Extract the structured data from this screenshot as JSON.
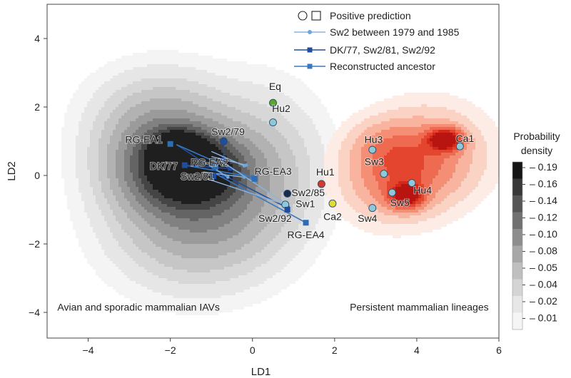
{
  "chart_data": {
    "type": "scatter",
    "title": "",
    "xlabel": "LD1",
    "ylabel": "LD2",
    "xlim": [
      -5,
      6
    ],
    "ylim": [
      -4.75,
      5
    ],
    "xticks": [
      {
        "v": -4,
        "label": "−4"
      },
      {
        "v": -2,
        "label": "−2"
      },
      {
        "v": 0,
        "label": "0"
      },
      {
        "v": 2,
        "label": "2"
      },
      {
        "v": 4,
        "label": "4"
      },
      {
        "v": 6,
        "label": "6"
      }
    ],
    "yticks": [
      {
        "v": -4,
        "label": "−4"
      },
      {
        "v": -2,
        "label": "−2"
      },
      {
        "v": 0,
        "label": "0"
      },
      {
        "v": 2,
        "label": "2"
      },
      {
        "v": 4,
        "label": "4"
      }
    ],
    "region_labels": [
      {
        "text": "Avian and sporadic mammalian IAVs",
        "x": -4.75,
        "y": -3.95,
        "anchor": "start"
      },
      {
        "text": "Persistent mammalian lineages",
        "x": 5.75,
        "y": -3.95,
        "anchor": "end"
      }
    ],
    "density": {
      "gray_peaks": [
        {
          "x": -1.85,
          "y": 0.75,
          "sx": 0.35,
          "sy": 0.3,
          "w": 1.0
        },
        {
          "x": -1.4,
          "y": 0.2,
          "sx": 0.7,
          "sy": 0.6,
          "w": 0.8
        },
        {
          "x": -2.2,
          "y": 0.3,
          "sx": 0.9,
          "sy": 0.95,
          "w": 0.55
        },
        {
          "x": -1.0,
          "y": -0.4,
          "sx": 1.1,
          "sy": 1.3,
          "w": 0.35
        },
        {
          "x": -1.6,
          "y": -1.6,
          "sx": 1.2,
          "sy": 1.1,
          "w": 0.18
        },
        {
          "x": -2.3,
          "y": 1.7,
          "sx": 1.0,
          "sy": 0.9,
          "w": 0.18
        },
        {
          "x": 0.3,
          "y": 0.2,
          "sx": 0.9,
          "sy": 1.4,
          "w": 0.15
        }
      ],
      "red_peaks": [
        {
          "x": 4.7,
          "y": 1.05,
          "sx": 0.28,
          "sy": 0.22,
          "w": 1.0
        },
        {
          "x": 3.75,
          "y": -0.6,
          "sx": 0.28,
          "sy": 0.25,
          "w": 0.85
        },
        {
          "x": 3.4,
          "y": -0.1,
          "sx": 0.8,
          "sy": 0.8,
          "w": 0.4
        },
        {
          "x": 4.3,
          "y": 0.6,
          "sx": 0.9,
          "sy": 0.9,
          "w": 0.4
        },
        {
          "x": 3.2,
          "y": 0.9,
          "sx": 0.6,
          "sy": 0.5,
          "w": 0.18
        }
      ],
      "gray_levels": [
        0.02,
        0.05,
        0.1,
        0.16,
        0.24,
        0.34,
        0.45,
        0.57,
        0.7,
        0.85
      ],
      "gray_colors": [
        "#f4f4f4",
        "#e6e6e6",
        "#d7d7d7",
        "#c6c6c6",
        "#b2b2b2",
        "#9b9b9b",
        "#818181",
        "#646464",
        "#454545",
        "#1f1f1f"
      ],
      "red_levels": [
        0.05,
        0.12,
        0.22,
        0.34,
        0.48,
        0.62,
        0.78,
        0.9
      ],
      "red_colors": [
        "#fdece6",
        "#fbd3c4",
        "#f8b49e",
        "#f48f75",
        "#ee6a50",
        "#e4452e",
        "#d2291b",
        "#b81410"
      ]
    },
    "trajectories": [
      {
        "x1": -1.85,
        "y1": 0.9,
        "x2": -0.7,
        "y2": 0.0,
        "kind": "dark"
      },
      {
        "x1": -1.85,
        "y1": 0.9,
        "x2": 0.05,
        "y2": -0.1,
        "kind": "ancestor"
      },
      {
        "x1": -1.65,
        "y1": 0.3,
        "x2": 0.0,
        "y2": -0.05,
        "kind": "ancestor"
      },
      {
        "x1": -1.65,
        "y1": 0.3,
        "x2": -0.55,
        "y2": 0.2,
        "kind": "dark"
      },
      {
        "x1": -1.0,
        "y1": 0.2,
        "x2": 0.85,
        "y2": -0.95,
        "kind": "dark"
      },
      {
        "x1": -0.9,
        "y1": 0.05,
        "x2": 1.3,
        "y2": -1.38,
        "kind": "ancestor"
      },
      {
        "x1": -0.7,
        "y1": 0.95,
        "x2": -0.7,
        "y2": 0.5,
        "kind": "dark"
      },
      {
        "x1": -1.0,
        "y1": 0.7,
        "x2": -0.2,
        "y2": 0.28,
        "kind": "light"
      },
      {
        "x1": -1.0,
        "y1": 0.55,
        "x2": -0.15,
        "y2": 0.3,
        "kind": "light"
      },
      {
        "x1": -0.8,
        "y1": 0.45,
        "x2": 0.85,
        "y2": -0.85,
        "kind": "light"
      },
      {
        "x1": -1.1,
        "y1": -0.1,
        "x2": 0.8,
        "y2": -0.85,
        "kind": "light"
      },
      {
        "x1": -1.05,
        "y1": 0.3,
        "x2": -0.6,
        "y2": -0.05,
        "kind": "light"
      },
      {
        "x1": -1.2,
        "y1": 0.1,
        "x2": -0.2,
        "y2": -0.05,
        "kind": "light"
      }
    ],
    "points": [
      {
        "label": "Eq",
        "x": 0.5,
        "y": 2.12,
        "color": "#5aa632",
        "lx": 0.55,
        "ly": 2.5,
        "anchor": "middle"
      },
      {
        "label": "Hu2",
        "x": 0.5,
        "y": 1.55,
        "color": "#8fc9d9",
        "lx": 0.7,
        "ly": 1.85,
        "anchor": "middle"
      },
      {
        "label": "Sw2/79",
        "x": -0.7,
        "y": 1.0,
        "color": "#1f4e9e",
        "lx": -1.0,
        "ly": 1.18,
        "anchor": "start"
      },
      {
        "label": "RG-EA1",
        "x": -2.0,
        "y": 0.92,
        "color": "#2d6db5",
        "lx": -3.1,
        "ly": 0.95,
        "anchor": "start",
        "shape": "square"
      },
      {
        "label": "DK/77",
        "x": -1.65,
        "y": 0.3,
        "color": "#1f4e9e",
        "lx": -2.5,
        "ly": 0.18,
        "anchor": "start",
        "shape": "square"
      },
      {
        "label": "RG-EA2",
        "x": -0.9,
        "y": 0.25,
        "color": "#2d6db5",
        "lx": -1.5,
        "ly": 0.28,
        "anchor": "start",
        "shape": "square"
      },
      {
        "label": "Sw2/81",
        "x": -0.95,
        "y": -0.02,
        "color": "#1f4e9e",
        "lx": -1.75,
        "ly": -0.13,
        "anchor": "start",
        "shape": "square"
      },
      {
        "label": "RG-EA3",
        "x": 0.05,
        "y": -0.1,
        "color": "#2d6db5",
        "lx": 0.05,
        "ly": 0.02,
        "anchor": "start",
        "shape": "square"
      },
      {
        "label": "Hu1",
        "x": 1.68,
        "y": -0.25,
        "color": "#d6392b",
        "lx": 1.55,
        "ly": 0.0,
        "anchor": "start"
      },
      {
        "label": "Sw2/85",
        "x": 0.85,
        "y": -0.53,
        "color": "#1a2a4d",
        "lx": 0.95,
        "ly": -0.6,
        "anchor": "start"
      },
      {
        "label": "Sw1",
        "x": 0.8,
        "y": -0.85,
        "color": "#8fc9d9",
        "lx": 1.05,
        "ly": -0.93,
        "anchor": "start"
      },
      {
        "label": "Ca2",
        "x": 1.95,
        "y": -0.82,
        "color": "#e6d930",
        "lx": 1.95,
        "ly": -1.3,
        "anchor": "middle"
      },
      {
        "label": "Sw2/92",
        "x": 0.85,
        "y": -1.0,
        "color": "#1f4e9e",
        "lx": 0.55,
        "ly": -1.35,
        "anchor": "middle",
        "shape": "square"
      },
      {
        "label": "RG-EA4",
        "x": 1.3,
        "y": -1.38,
        "color": "#2d6db5",
        "lx": 1.3,
        "ly": -1.83,
        "anchor": "middle",
        "shape": "square"
      },
      {
        "label": "Hu3",
        "x": 2.92,
        "y": 0.75,
        "color": "#8fc9d9",
        "lx": 2.95,
        "ly": 0.95,
        "anchor": "middle"
      },
      {
        "label": "Ca1",
        "x": 5.05,
        "y": 0.85,
        "color": "#8fc9d9",
        "lx": 4.95,
        "ly": 0.98,
        "anchor": "start"
      },
      {
        "label": "Sw3",
        "x": 3.2,
        "y": 0.05,
        "color": "#8fc9d9",
        "lx": 3.2,
        "ly": 0.3,
        "anchor": "end"
      },
      {
        "label": "Hu4",
        "x": 3.88,
        "y": -0.22,
        "color": "#8fc9d9",
        "lx": 3.92,
        "ly": -0.53,
        "anchor": "start"
      },
      {
        "label": "Sw5",
        "x": 3.4,
        "y": -0.5,
        "color": "#8fc9d9",
        "lx": 3.35,
        "ly": -0.9,
        "anchor": "start"
      },
      {
        "label": "Sw4",
        "x": 2.92,
        "y": -0.95,
        "color": "#8fc9d9",
        "lx": 2.8,
        "ly": -1.35,
        "anchor": "middle"
      }
    ],
    "legend": {
      "position": "top-right",
      "entries": [
        {
          "label": "Positive prediction",
          "kind": "shapes"
        },
        {
          "label": "Sw2 between 1979 and 1985",
          "kind": "light"
        },
        {
          "label": "DK/77, Sw2/81, Sw2/92",
          "kind": "dark"
        },
        {
          "label": "Reconstructed ancestor",
          "kind": "ancestor"
        }
      ]
    },
    "colorbar": {
      "title_lines": [
        "Probability",
        "density"
      ],
      "levels": [
        "0.19",
        "0.16",
        "0.14",
        "0.12",
        "0.10",
        "0.08",
        "0.05",
        "0.04",
        "0.02",
        "0.01"
      ],
      "colors": [
        "#151515",
        "#383838",
        "#555555",
        "#717171",
        "#8d8d8d",
        "#a7a7a7",
        "#bfbfbf",
        "#d4d4d4",
        "#e7e7e7",
        "#f5f5f5"
      ]
    }
  }
}
